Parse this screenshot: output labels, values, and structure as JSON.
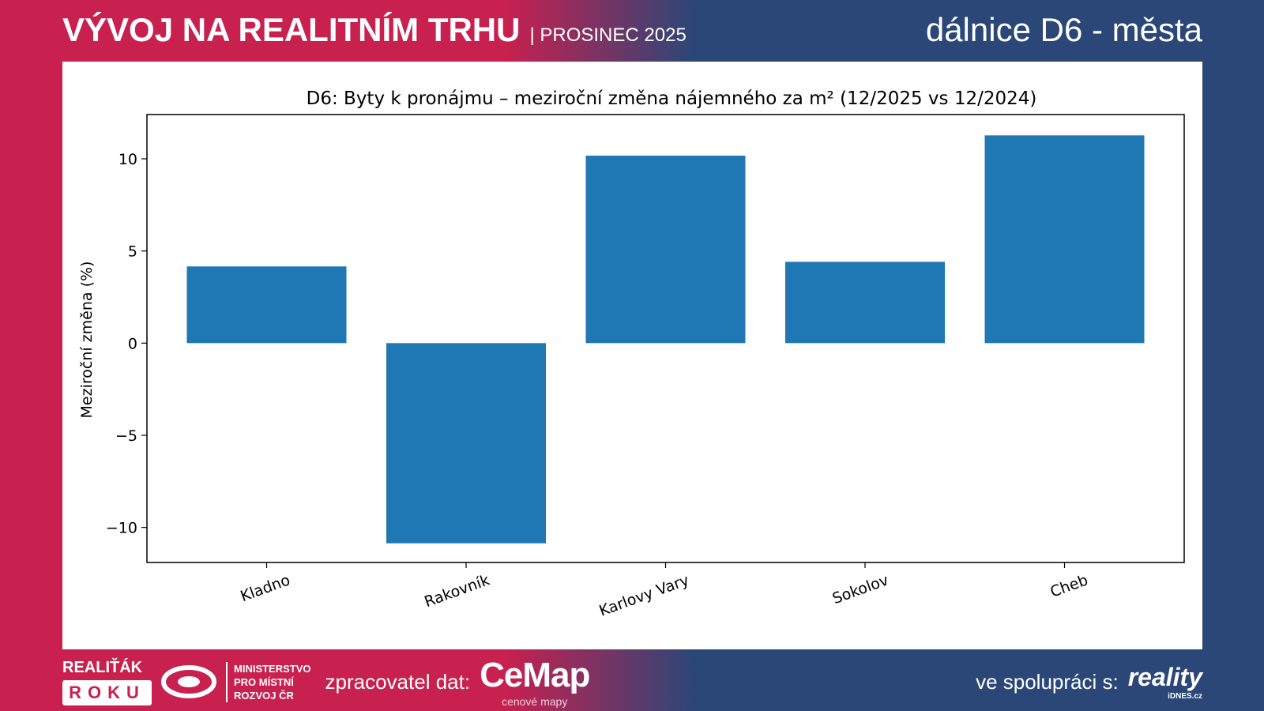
{
  "header": {
    "title": "VÝVOJ NA REALITNÍM TRHU",
    "subtitle": "| PROSINEC 2025",
    "right_title": "dálnice D6 - města"
  },
  "footer": {
    "realitak": "REALIŤÁK",
    "roku": "ROKU",
    "ministry": [
      "MINISTERSTVO",
      "PRO MÍSTNÍ",
      "ROZVOJ ČR"
    ],
    "processor_label": "zpracovatel dat:",
    "cemap": "CeMap",
    "cemap_sub": "cenové mapy",
    "partner_label": "ve spolupráci s:",
    "reality": "reality",
    "idnes": "iDNES.cz"
  },
  "colors": {
    "red": "#c8204f",
    "blue": "#2a4778",
    "bar": "#1f77b4"
  },
  "chart_data": {
    "type": "bar",
    "title": "D6: Byty k pronájmu – meziroční změna nájemného za m² (12/2025 vs 12/2024)",
    "xlabel": "",
    "ylabel": "Meziroční změna (%)",
    "categories": [
      "Kladno",
      "Rakovník",
      "Karlovy Vary",
      "Sokolov",
      "Cheb"
    ],
    "values": [
      4.16,
      -10.86,
      10.17,
      4.41,
      11.27
    ],
    "ylim": [
      -11.9,
      12.4
    ],
    "yticks": [
      -10,
      -5,
      0,
      5,
      10
    ],
    "ytick_labels": [
      "−10",
      "−5",
      "0",
      "5",
      "10"
    ],
    "grid": false
  }
}
